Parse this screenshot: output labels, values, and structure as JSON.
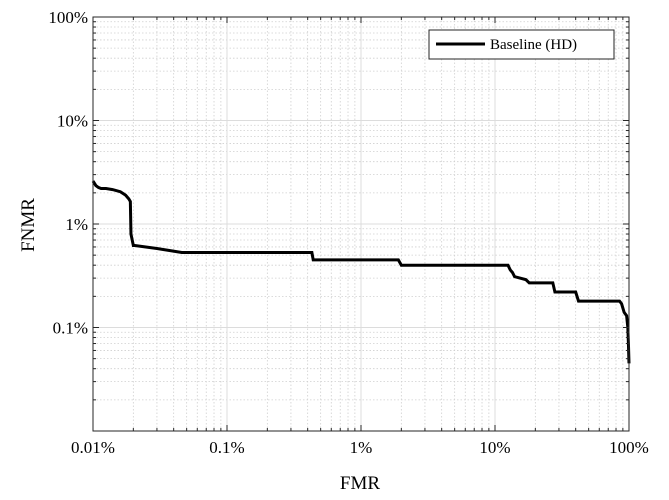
{
  "chart_data": {
    "type": "line",
    "title": "",
    "xlabel": "FMR",
    "ylabel": "FNMR",
    "xscale": "log",
    "yscale": "log",
    "xlim": [
      0.01,
      100
    ],
    "ylim": [
      0.01,
      100
    ],
    "x_tick_values": [
      0.01,
      0.1,
      1,
      10,
      100
    ],
    "x_tick_labels": [
      "0.01%",
      "0.1%",
      "1%",
      "10%",
      "100%"
    ],
    "y_tick_values": [
      0.1,
      1,
      10,
      100
    ],
    "y_tick_labels": [
      "0.1%",
      "1%",
      "10%",
      "100%"
    ],
    "grid": true,
    "minor_grid": true,
    "legend_position": "top-right",
    "colors": {
      "series": "#000000",
      "grid_major": "#dcdcdc",
      "grid_minor": "#cfcfcf",
      "axes": "#262626"
    },
    "series": [
      {
        "name": "Baseline (HD)",
        "x": [
          0.01,
          0.0102,
          0.0105,
          0.011,
          0.0115,
          0.0125,
          0.014,
          0.016,
          0.0175,
          0.0185,
          0.019,
          0.0192,
          0.02,
          0.0205,
          0.03,
          0.046,
          0.1,
          0.43,
          0.44,
          1.9,
          2.0,
          10,
          12.5,
          13,
          13.5,
          14,
          17,
          18,
          27,
          28,
          40,
          42,
          85,
          88,
          92,
          96,
          98,
          99,
          100
        ],
        "y": [
          2.6,
          2.5,
          2.35,
          2.25,
          2.2,
          2.2,
          2.15,
          2.05,
          1.9,
          1.75,
          1.65,
          0.8,
          0.62,
          0.62,
          0.58,
          0.53,
          0.53,
          0.53,
          0.45,
          0.45,
          0.4,
          0.4,
          0.4,
          0.36,
          0.34,
          0.31,
          0.29,
          0.27,
          0.27,
          0.22,
          0.22,
          0.18,
          0.18,
          0.17,
          0.14,
          0.13,
          0.1,
          0.07,
          0.045
        ]
      }
    ]
  }
}
